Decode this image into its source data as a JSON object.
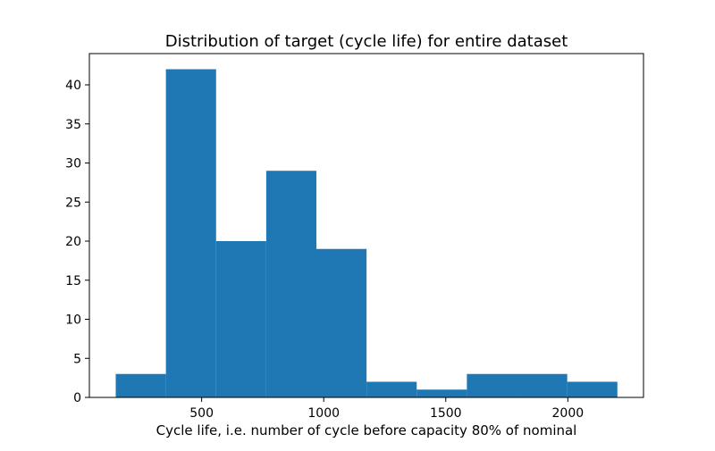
{
  "chart_data": {
    "type": "bar",
    "title": "Distribution of target (cycle life) for entire dataset",
    "xlabel": "Cycle life, i.e. number of cycle before capacity 80% of nominal",
    "ylabel": "",
    "bin_edges": [
      148,
      353.5,
      559,
      764.5,
      970,
      1175.5,
      1381,
      1586.5,
      1792,
      1997.5,
      2203
    ],
    "values": [
      3,
      42,
      20,
      29,
      19,
      2,
      1,
      3,
      3,
      2
    ],
    "xlim": [
      40,
      2310
    ],
    "ylim": [
      0,
      44
    ],
    "xticks": [
      500,
      1000,
      1500,
      2000
    ],
    "yticks": [
      0,
      5,
      10,
      15,
      20,
      25,
      30,
      35,
      40
    ],
    "bar_color": "#1f77b4",
    "grid": false,
    "legend": "none"
  }
}
